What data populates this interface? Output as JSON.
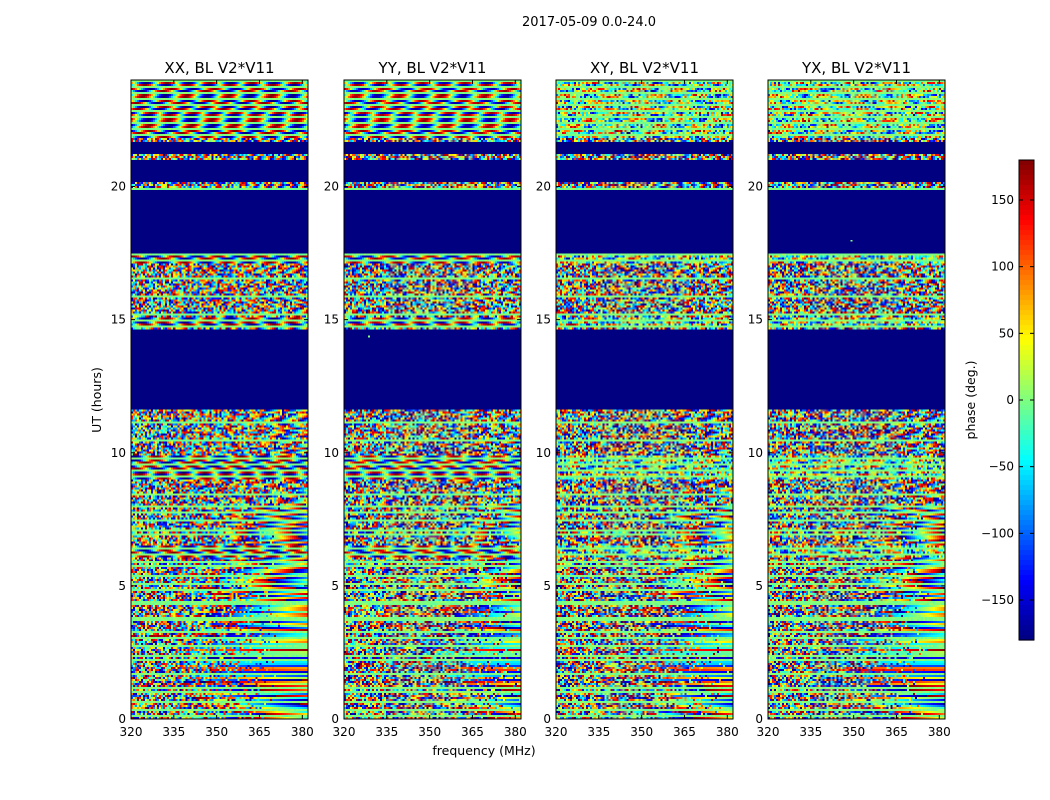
{
  "chart_data": {
    "type": "heatmap",
    "suptitle": "2017-05-09 0.0-24.0",
    "xlabel": "frequency (MHz)",
    "ylabel": "UT (hours)",
    "xlim": [
      320,
      382
    ],
    "ylim": [
      0,
      24
    ],
    "x_ticks": [
      320,
      335,
      350,
      365,
      380
    ],
    "y_ticks": [
      0,
      5,
      10,
      15,
      20
    ],
    "panels": [
      {
        "title": "XX, BL V2*V11",
        "fringe_strength": 1.0,
        "fringe_center_mhz": 358,
        "fringe_time_h": 2.3
      },
      {
        "title": "YY, BL V2*V11",
        "fringe_strength": 0.95,
        "fringe_center_mhz": 368,
        "fringe_time_h": 2.3
      },
      {
        "title": "XY, BL V2*V11",
        "fringe_strength": 0.45,
        "fringe_center_mhz": 366,
        "fringe_time_h": 2.4
      },
      {
        "title": "YX, BL V2*V11",
        "fringe_strength": 0.45,
        "fringe_center_mhz": 362,
        "fringe_time_h": 2.2
      }
    ],
    "flagged_ut_ranges_hours": [
      [
        11.6,
        14.6
      ],
      [
        17.5,
        19.9
      ],
      [
        20.2,
        21.0
      ],
      [
        21.2,
        21.7
      ]
    ],
    "colorbar": {
      "label": "phase (deg.)",
      "range": [
        -180,
        180
      ],
      "ticks": [
        -150,
        -100,
        -50,
        0,
        50,
        100,
        150
      ],
      "tick_labels": [
        "−150",
        "−100",
        "−50",
        "0",
        "50",
        "100",
        "150"
      ],
      "colormap": "jet"
    }
  }
}
